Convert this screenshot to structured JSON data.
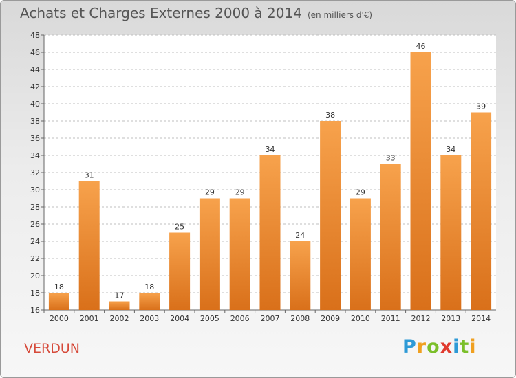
{
  "title": "Achats et Charges Externes 2000 à 2014",
  "subtitle": "(en milliers d'€)",
  "town": "VERDUN",
  "logo": {
    "letters": [
      "P",
      "r",
      "o",
      "x",
      "i",
      "t",
      "i"
    ],
    "colors": [
      "#2e9ad6",
      "#f0a020",
      "#7bbf2a",
      "#e03a2e",
      "#2e9ad6",
      "#7bbf2a",
      "#f0a020"
    ]
  },
  "colors": {
    "bar_top": "#f7a24c",
    "bar_bottom": "#d9701a",
    "grid": "#bfbfbf",
    "axis_text": "#333333",
    "town": "#d64a3a"
  },
  "chart_data": {
    "type": "bar",
    "categories": [
      "2000",
      "2001",
      "2002",
      "2003",
      "2004",
      "2005",
      "2006",
      "2007",
      "2008",
      "2009",
      "2010",
      "2011",
      "2012",
      "2013",
      "2014"
    ],
    "values": [
      18,
      31,
      17,
      18,
      25,
      29,
      29,
      34,
      24,
      38,
      29,
      33,
      46,
      34,
      39
    ],
    "title": "Achats et Charges Externes 2000 à 2014",
    "ylim": [
      16,
      48
    ],
    "yticks": [
      16,
      18,
      20,
      22,
      24,
      26,
      28,
      30,
      32,
      34,
      36,
      38,
      40,
      42,
      44,
      46,
      48
    ],
    "grid": true,
    "data_labels": true
  }
}
